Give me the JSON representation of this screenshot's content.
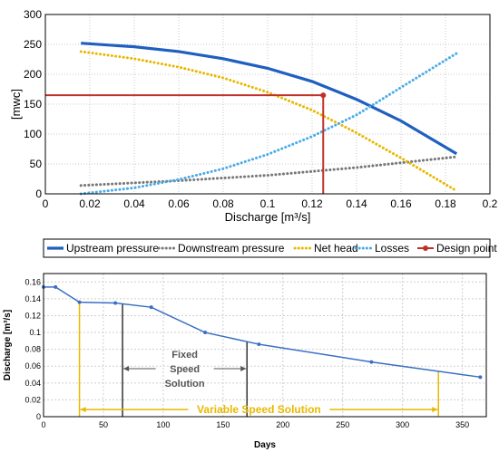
{
  "chart_data": [
    {
      "type": "line",
      "xlabel": "Discharge [m³/s]",
      "ylabel": "[mwc]",
      "xlim": [
        0,
        0.2
      ],
      "ylim": [
        0,
        300
      ],
      "xticks": [
        "0",
        "0.02",
        "0.04",
        "0.06",
        "0.08",
        "0.1",
        "0.12",
        "0.14",
        "0.16",
        "0.18",
        "0.2"
      ],
      "yticks": [
        "0",
        "50",
        "100",
        "150",
        "200",
        "250",
        "300"
      ],
      "grid": true,
      "legend_position": "below",
      "series": [
        {
          "name": "Upstream pressure",
          "color": "#1f5fbf",
          "style": "solid",
          "x": [
            0.016,
            0.04,
            0.06,
            0.08,
            0.1,
            0.12,
            0.14,
            0.16,
            0.185
          ],
          "y": [
            252,
            246,
            238,
            226,
            210,
            188,
            158,
            122,
            67
          ]
        },
        {
          "name": "Downstream pressure",
          "color": "#777777",
          "style": "dotted",
          "x": [
            0.016,
            0.06,
            0.1,
            0.14,
            0.185
          ],
          "y": [
            14,
            22,
            31,
            44,
            62
          ]
        },
        {
          "name": "Net head",
          "color": "#e8b800",
          "style": "dotted",
          "x": [
            0.016,
            0.04,
            0.06,
            0.08,
            0.1,
            0.12,
            0.14,
            0.16,
            0.185
          ],
          "y": [
            238,
            226,
            212,
            194,
            170,
            140,
            102,
            60,
            5
          ]
        },
        {
          "name": "Losses",
          "color": "#4aaae8",
          "style": "dotted",
          "x": [
            0.016,
            0.04,
            0.06,
            0.08,
            0.1,
            0.12,
            0.14,
            0.16,
            0.185
          ],
          "y": [
            0,
            10,
            24,
            42,
            66,
            96,
            132,
            178,
            235
          ]
        },
        {
          "name": "Design point",
          "color": "#c0302a",
          "style": "marker",
          "x": [
            0.125
          ],
          "y": [
            165
          ]
        }
      ]
    },
    {
      "type": "line",
      "xlabel": "Days",
      "ylabel": "Discharge [m³/s]",
      "xlim": [
        0,
        370
      ],
      "ylim": [
        0,
        0.17
      ],
      "xticks": [
        "0",
        "50",
        "100",
        "150",
        "200",
        "250",
        "300",
        "350"
      ],
      "yticks": [
        "0",
        "0.02",
        "0.04",
        "0.06",
        "0.08",
        "0.1",
        "0.12",
        "0.14",
        "0.16"
      ],
      "grid": true,
      "series": [
        {
          "name": "",
          "color": "#3a6fc4",
          "x": [
            0,
            10,
            30,
            60,
            90,
            135,
            180,
            274,
            365
          ],
          "y": [
            0.154,
            0.154,
            0.136,
            0.135,
            0.13,
            0.1,
            0.086,
            0.065,
            0.047
          ]
        }
      ],
      "annotations": [
        {
          "text_lines": [
            "Fixed",
            "Speed",
            "Solution"
          ],
          "x_from": 66,
          "x_to": 170,
          "color": "#555555"
        },
        {
          "text": "Variable Speed Solution",
          "x_from": 30,
          "x_to": 330,
          "color": "#e8b800"
        }
      ]
    }
  ]
}
